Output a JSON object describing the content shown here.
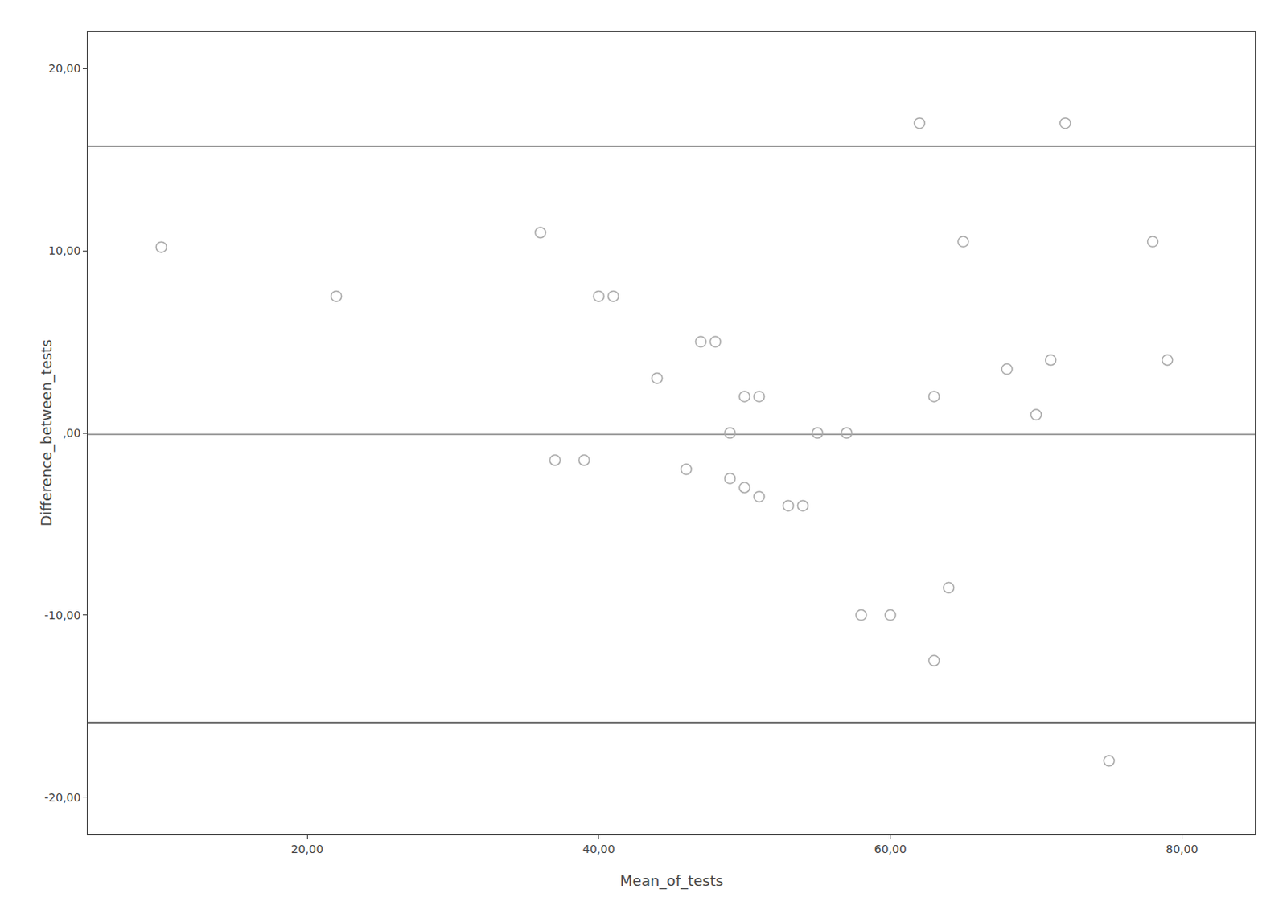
{
  "chart_data": {
    "type": "scatter",
    "xlabel": "Mean_of_tests",
    "ylabel": "Difference_between_tests",
    "x": [
      10,
      22,
      36,
      37,
      39,
      40,
      41,
      44,
      46,
      47,
      48,
      49,
      49,
      50,
      50,
      51,
      51,
      53,
      54,
      55,
      57,
      58,
      60,
      62,
      63,
      63,
      64,
      65,
      68,
      70,
      71,
      72,
      75,
      78,
      79
    ],
    "series": [
      {
        "values": [
          10.2,
          7.5,
          11.0,
          -1.5,
          -1.5,
          7.5,
          7.5,
          3.0,
          -2.0,
          5.0,
          5.0,
          -2.5,
          0.0,
          -3.0,
          2.0,
          2.0,
          -3.5,
          -4.0,
          -4.0,
          0.0,
          0.0,
          -10.0,
          -10.0,
          17.0,
          2.0,
          -12.5,
          -8.5,
          10.5,
          3.5,
          1.0,
          4.0,
          17.0,
          -18.0,
          10.5,
          4.0
        ],
        "color": "#aaaaaa",
        "marker": "circle-open"
      }
    ],
    "hlines": [
      {
        "y": -0.08,
        "color": "#888888"
      },
      {
        "y": 15.74,
        "color": "#555555"
      },
      {
        "y": -15.9,
        "color": "#555555"
      }
    ],
    "xlim": [
      5,
      85
    ],
    "ylim": [
      -22,
      22
    ],
    "xticks": [
      {
        "value": 20,
        "label": "20,00"
      },
      {
        "value": 40,
        "label": "40,00"
      },
      {
        "value": 60,
        "label": "60,00"
      },
      {
        "value": 80,
        "label": "80,00"
      }
    ],
    "yticks": [
      {
        "value": -20,
        "label": "-20,00"
      },
      {
        "value": -10,
        "label": "-10,00"
      },
      {
        "value": 0,
        "label": ",00"
      },
      {
        "value": 10,
        "label": "10,00"
      },
      {
        "value": 20,
        "label": "20,00"
      }
    ],
    "grid": false
  }
}
